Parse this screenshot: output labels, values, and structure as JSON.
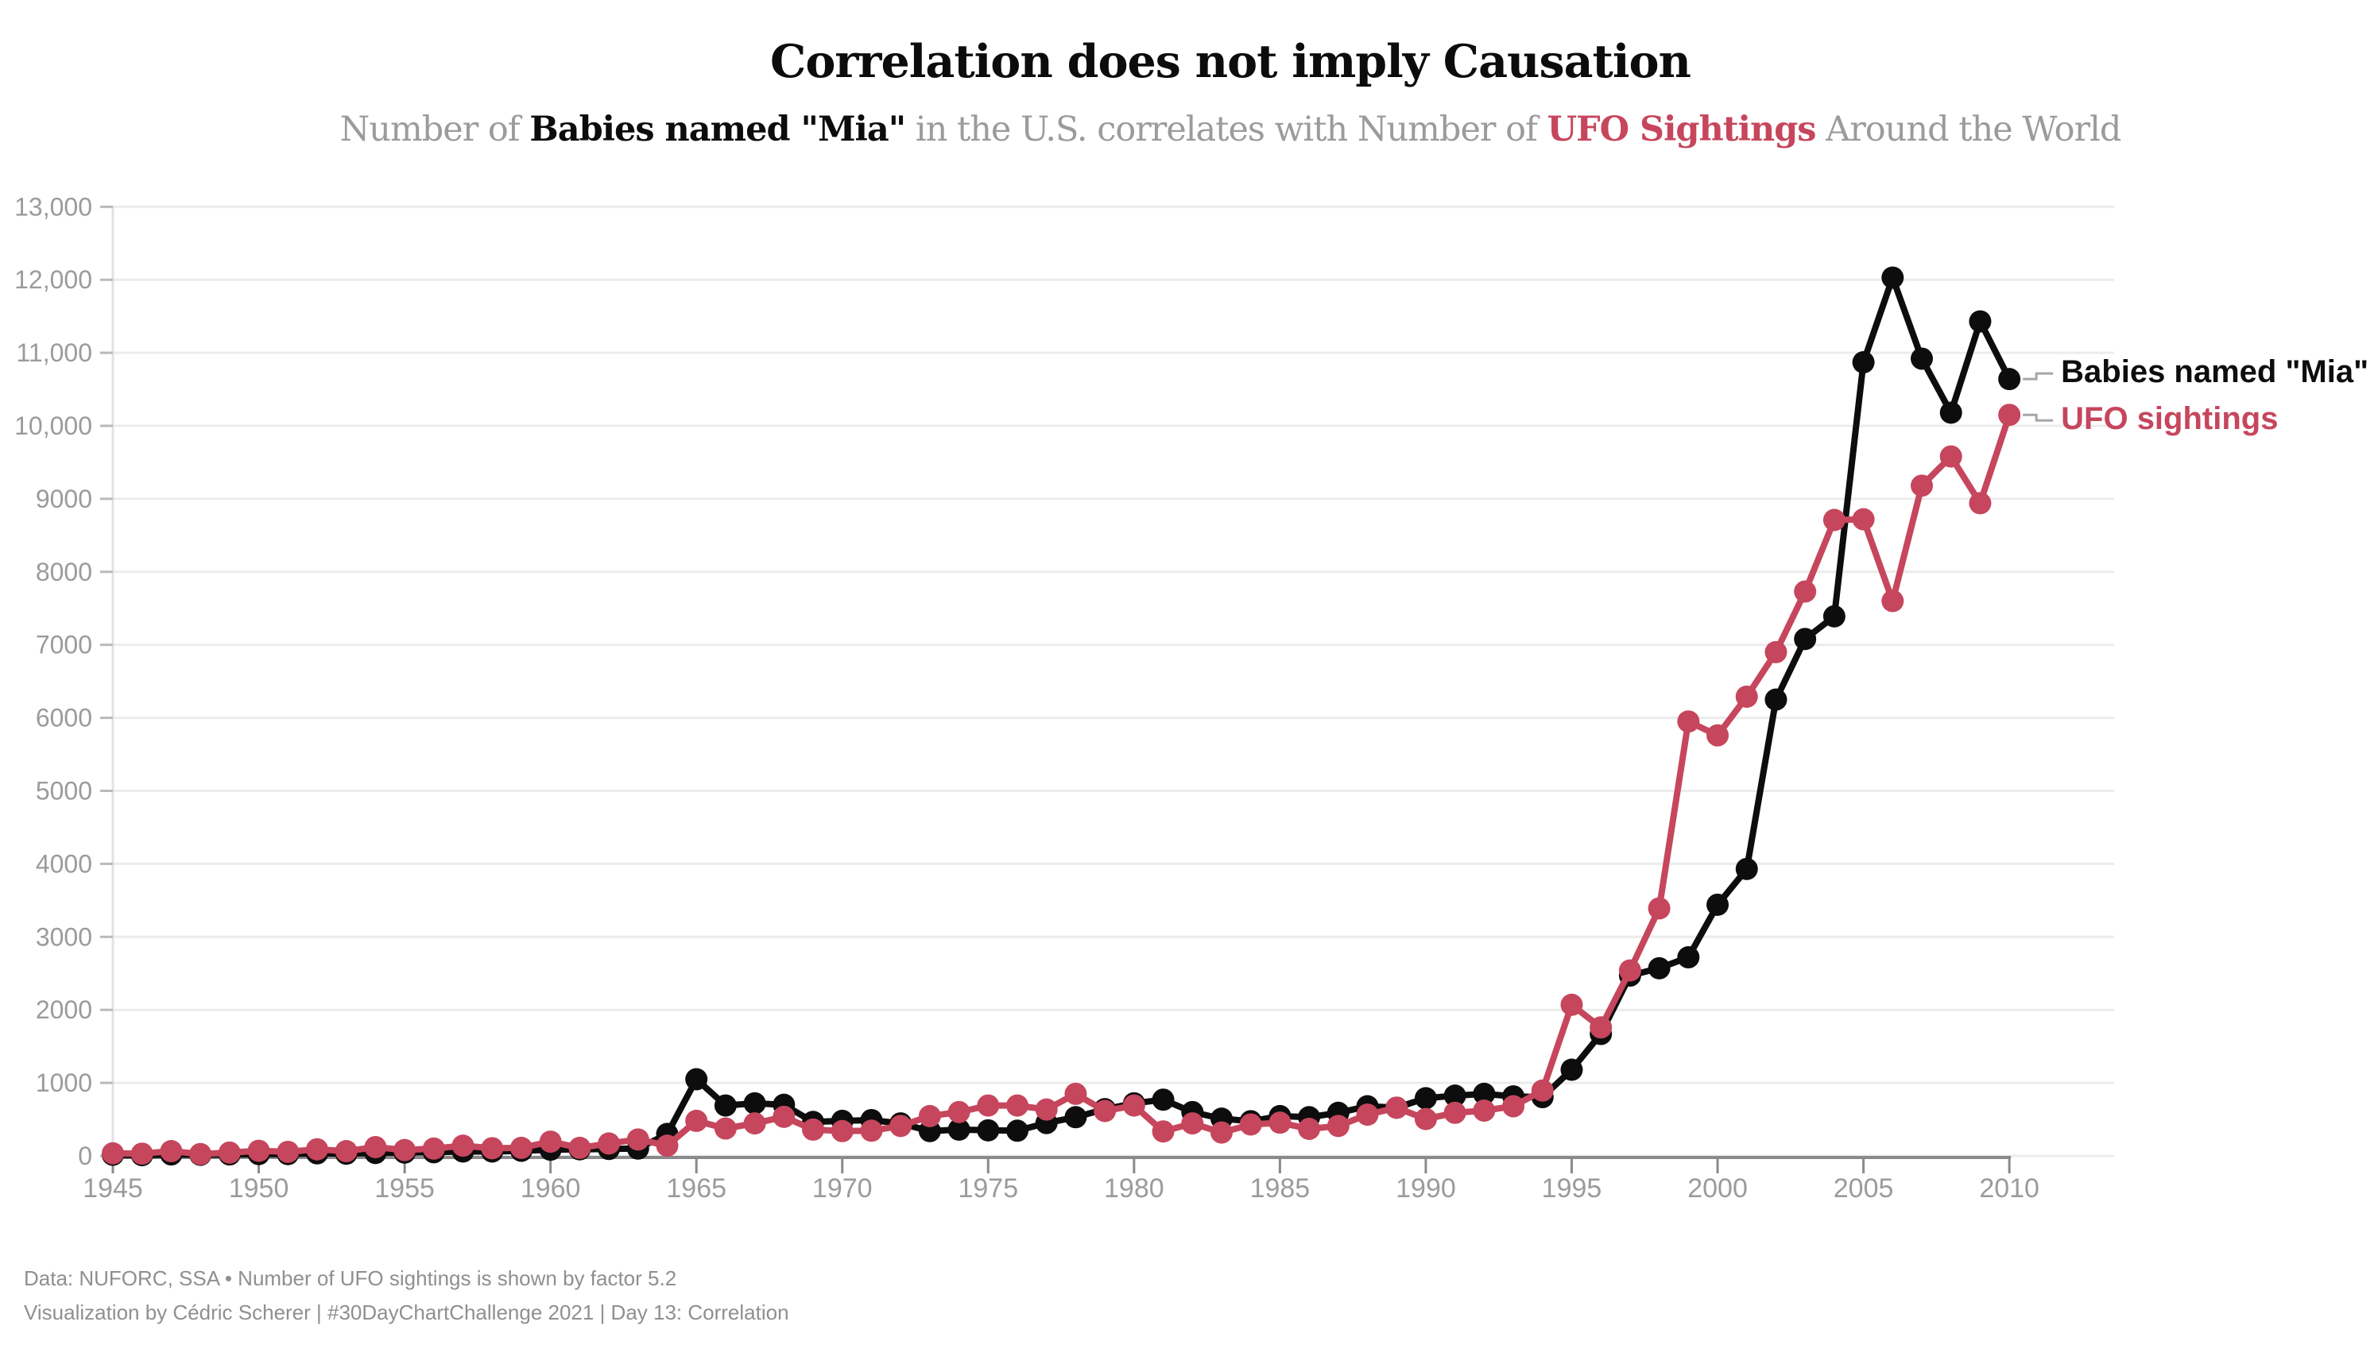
{
  "title": "Correlation does not imply Causation",
  "subtitle": {
    "part1": "Number of ",
    "part2_bold_black": "Babies named \"Mia\"",
    "part3": " in the U.S. correlates with Number of ",
    "part4_bold_red": "UFO Sightings",
    "part5": " Around the World"
  },
  "colors": {
    "black_series": "#0d0d0d",
    "red_series": "#c6465d",
    "grid": "#ececec",
    "y_axis_line": "#e2e2e2",
    "y_tick": "#b9b9b9",
    "x_axis_line": "#8a8a8a",
    "tick_label": "#9b9b9b",
    "connector": "#a6a6a6",
    "footer_text": "#8f8f8f"
  },
  "series_labels": {
    "mia": "Babies named \"Mia\"",
    "ufo": "UFO sightings"
  },
  "footer": {
    "line1": "Data: NUFORC, SSA • Number of UFO sightings is shown by factor 5.2",
    "line2": "Visualization by Cédric Scherer | #30DayChartChallenge 2021 | Day 13: Correlation"
  },
  "chart_data": {
    "type": "line",
    "title": "Correlation does not imply Causation",
    "subtitle": "Number of Babies named \"Mia\" in the U.S. correlates with Number of UFO Sightings Around the World",
    "xlabel": "",
    "ylabel": "",
    "xlim": [
      1945,
      2010
    ],
    "ylim": [
      0,
      13000
    ],
    "x_tick_step": 5,
    "y_tick_step": 1000,
    "grid": "horizontal",
    "legend_position": "right-of-last-point",
    "note": "Number of UFO sightings is shown by factor 5.2",
    "x": [
      1945,
      1946,
      1947,
      1948,
      1949,
      1950,
      1951,
      1952,
      1953,
      1954,
      1955,
      1956,
      1957,
      1958,
      1959,
      1960,
      1961,
      1962,
      1963,
      1964,
      1965,
      1966,
      1967,
      1968,
      1969,
      1970,
      1971,
      1972,
      1973,
      1974,
      1975,
      1976,
      1977,
      1978,
      1979,
      1980,
      1981,
      1982,
      1983,
      1984,
      1985,
      1986,
      1987,
      1988,
      1989,
      1990,
      1991,
      1992,
      1993,
      1994,
      1995,
      1996,
      1997,
      1998,
      1999,
      2000,
      2001,
      2002,
      2003,
      2004,
      2005,
      2006,
      2007,
      2008,
      2009,
      2010
    ],
    "series": [
      {
        "name": "Babies named \"Mia\"",
        "color": "#0d0d0d",
        "values": [
          15,
          10,
          20,
          15,
          20,
          25,
          25,
          35,
          30,
          40,
          45,
          50,
          60,
          60,
          70,
          85,
          90,
          95,
          100,
          300,
          1050,
          690,
          720,
          700,
          465,
          480,
          490,
          445,
          340,
          360,
          350,
          345,
          450,
          530,
          640,
          720,
          770,
          600,
          510,
          475,
          545,
          530,
          590,
          680,
          660,
          790,
          825,
          850,
          815,
          805,
          1180,
          1670,
          2470,
          2570,
          2720,
          3440,
          3930,
          6250,
          7080,
          7390,
          10870,
          12030,
          10920,
          10180,
          11430,
          10640
        ]
      },
      {
        "name": "UFO sightings",
        "color": "#c6465d",
        "values": [
          35,
          30,
          65,
          25,
          45,
          70,
          55,
          90,
          65,
          120,
          80,
          100,
          140,
          105,
          110,
          195,
          110,
          170,
          225,
          140,
          480,
          375,
          445,
          535,
          360,
          340,
          345,
          410,
          545,
          600,
          690,
          690,
          635,
          850,
          615,
          690,
          335,
          445,
          320,
          430,
          455,
          370,
          410,
          565,
          660,
          505,
          590,
          620,
          680,
          895,
          2070,
          1760,
          2540,
          3390,
          5950,
          5760,
          6290,
          6900,
          7730,
          8710,
          8720,
          7600,
          9180,
          9580,
          8940,
          10150
        ]
      }
    ]
  }
}
